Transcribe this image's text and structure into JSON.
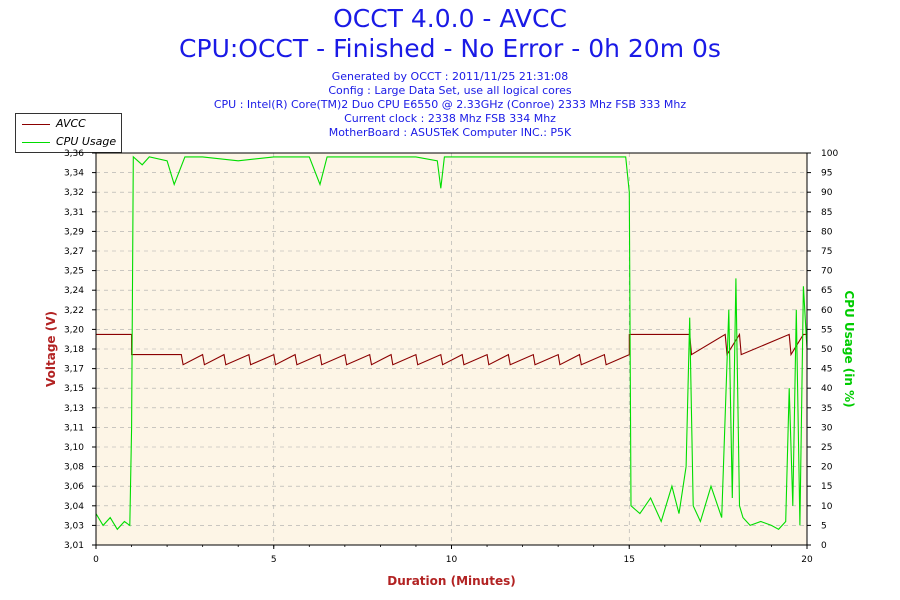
{
  "header": {
    "title": "OCCT 4.0.0 - AVCC",
    "subtitle": "CPU:OCCT - Finished - No Error - 0h 20m 0s",
    "info_lines": [
      "Generated by OCCT : 2011/11/25 21:31:08",
      "Config : Large Data Set, use all logical cores",
      "CPU : Intel(R) Core(TM)2 Duo CPU E6550 @ 2.33GHz (Conroe) 2333 Mhz FSB 333 Mhz",
      "Current clock : 2338 Mhz FSB 334 Mhz",
      "MotherBoard : ASUSTeK Computer INC.: P5K"
    ]
  },
  "legend": {
    "items": [
      {
        "label": "AVCC",
        "color": "#8b0000"
      },
      {
        "label": "CPU Usage",
        "color": "#00dd00"
      }
    ]
  },
  "chart_data": {
    "type": "line",
    "title": "OCCT 4.0.0 - AVCC",
    "xlabel": "Duration (Minutes)",
    "ylabel_left": "Voltage (V)",
    "ylabel_right": "CPU Usage (in %)",
    "xlim": [
      0,
      20
    ],
    "x_ticks": [
      "0",
      "5",
      "10",
      "15",
      "20"
    ],
    "ylim_left": [
      3.01,
      3.36
    ],
    "left_ticks": [
      "3,01",
      "3,03",
      "3,04",
      "3,06",
      "3,08",
      "3,10",
      "3,11",
      "3,13",
      "3,15",
      "3,17",
      "3,18",
      "3,20",
      "3,22",
      "3,24",
      "3,25",
      "3,27",
      "3,29",
      "3,31",
      "3,32",
      "3,34",
      "3,36"
    ],
    "ylim_right": [
      0,
      100
    ],
    "right_ticks": [
      "0",
      "5",
      "10",
      "15",
      "20",
      "25",
      "30",
      "35",
      "40",
      "45",
      "50",
      "55",
      "60",
      "65",
      "70",
      "75",
      "80",
      "85",
      "90",
      "95",
      "100"
    ],
    "grid": true,
    "background": "#fdf5e6",
    "series": [
      {
        "name": "AVCC",
        "axis": "left",
        "color": "#8b0000",
        "x": [
          0,
          1.0,
          1.0,
          2.4,
          2.45,
          3.0,
          3.05,
          3.6,
          3.65,
          4.3,
          4.35,
          5.0,
          5.05,
          5.6,
          5.65,
          6.3,
          6.35,
          7.0,
          7.05,
          7.7,
          7.75,
          8.3,
          8.35,
          9.0,
          9.05,
          9.7,
          9.75,
          10.3,
          10.35,
          11.0,
          11.05,
          11.6,
          11.65,
          12.3,
          12.35,
          13.0,
          13.05,
          13.6,
          13.65,
          14.3,
          14.35,
          15.0,
          15.0,
          16.7,
          16.75,
          17.7,
          17.75,
          18.1,
          18.15,
          19.5,
          19.55,
          19.9,
          20.0
        ],
        "y": [
          3.198,
          3.198,
          3.18,
          3.18,
          3.171,
          3.18,
          3.171,
          3.18,
          3.171,
          3.18,
          3.171,
          3.18,
          3.171,
          3.18,
          3.171,
          3.18,
          3.171,
          3.18,
          3.171,
          3.18,
          3.171,
          3.18,
          3.171,
          3.18,
          3.171,
          3.18,
          3.171,
          3.18,
          3.171,
          3.18,
          3.171,
          3.18,
          3.171,
          3.18,
          3.171,
          3.18,
          3.171,
          3.18,
          3.171,
          3.18,
          3.171,
          3.18,
          3.198,
          3.198,
          3.18,
          3.198,
          3.18,
          3.198,
          3.18,
          3.198,
          3.18,
          3.198,
          3.198
        ]
      },
      {
        "name": "CPU Usage",
        "axis": "right",
        "color": "#00dd00",
        "x": [
          0,
          0.2,
          0.4,
          0.6,
          0.8,
          0.95,
          1.0,
          1.05,
          1.3,
          1.5,
          2.0,
          2.2,
          2.5,
          3.0,
          4.0,
          5.0,
          6.0,
          6.3,
          6.5,
          7.0,
          8.0,
          9.0,
          9.6,
          9.7,
          9.8,
          10.5,
          11.5,
          12.5,
          13.5,
          14.5,
          14.9,
          15.0,
          15.05,
          15.3,
          15.6,
          15.9,
          16.2,
          16.4,
          16.6,
          16.7,
          16.8,
          17.0,
          17.3,
          17.6,
          17.8,
          17.9,
          18.0,
          18.1,
          18.2,
          18.4,
          18.7,
          19.0,
          19.2,
          19.4,
          19.5,
          19.6,
          19.7,
          19.8,
          19.9,
          20.0
        ],
        "y": [
          8,
          5,
          7,
          4,
          6,
          5,
          30,
          99,
          97,
          99,
          98,
          92,
          99,
          99,
          98,
          99,
          99,
          92,
          99,
          99,
          99,
          99,
          98,
          91,
          99,
          99,
          99,
          99,
          99,
          99,
          99,
          90,
          10,
          8,
          12,
          6,
          15,
          8,
          20,
          58,
          10,
          6,
          15,
          7,
          60,
          12,
          68,
          10,
          7,
          5,
          6,
          5,
          4,
          6,
          40,
          10,
          60,
          5,
          66,
          50
        ]
      }
    ]
  }
}
